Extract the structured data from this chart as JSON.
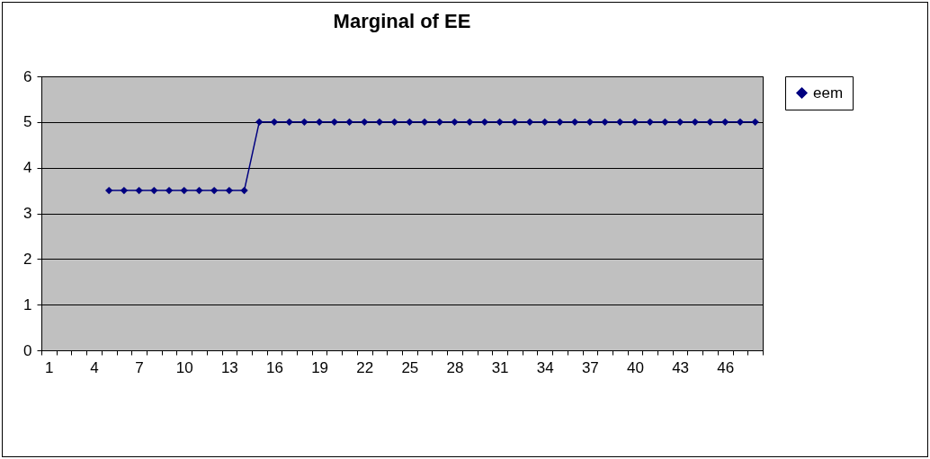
{
  "chart_data": {
    "type": "line",
    "title": "Marginal of EE",
    "categories": [
      "1",
      null,
      null,
      "4",
      null,
      null,
      "7",
      null,
      null,
      "10",
      null,
      null,
      "13",
      null,
      null,
      "16",
      null,
      null,
      "19",
      null,
      null,
      "22",
      null,
      null,
      "25",
      null,
      null,
      "28",
      null,
      null,
      "31",
      null,
      null,
      "34",
      null,
      null,
      "37",
      null,
      null,
      "40",
      null,
      null,
      "43",
      null,
      null,
      "46",
      null,
      null
    ],
    "series": [
      {
        "name": "eem",
        "color": "#000080",
        "values": [
          null,
          null,
          null,
          null,
          3.5,
          3.5,
          3.5,
          3.5,
          3.5,
          3.5,
          3.5,
          3.5,
          3.5,
          3.5,
          5,
          5,
          5,
          5,
          5,
          5,
          5,
          5,
          5,
          5,
          5,
          5,
          5,
          5,
          5,
          5,
          5,
          5,
          5,
          5,
          5,
          5,
          5,
          5,
          5,
          5,
          5,
          5,
          5,
          5,
          5,
          5,
          5,
          5
        ]
      }
    ],
    "ylim": [
      0,
      6
    ],
    "yticks": [
      0,
      1,
      2,
      3,
      4,
      5,
      6
    ],
    "grid": "y",
    "legend": "right",
    "marker": "diamond",
    "line_style": "solid"
  }
}
